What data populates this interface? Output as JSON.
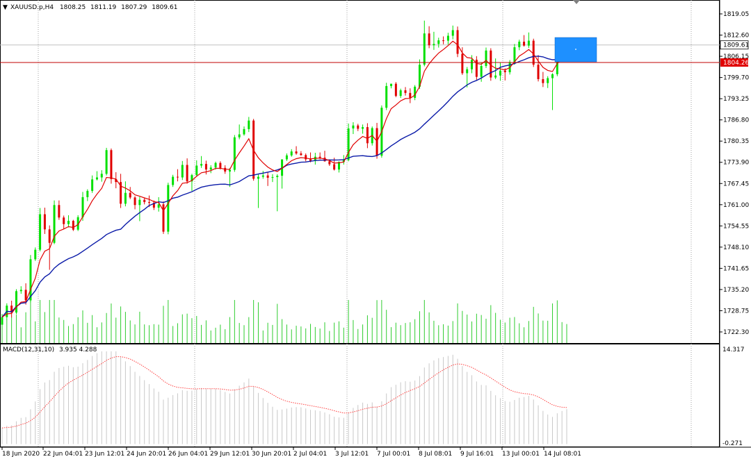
{
  "header": {
    "symbol": "XAUUSD.p,H4",
    "open": "1808.25",
    "high": "1811.19",
    "low": "1807.29",
    "close": "1809.61"
  },
  "colors": {
    "bull": "#00e000",
    "bear": "#e00000",
    "ma_fast": "#e00000",
    "ma_slow": "#0a1aa8",
    "volume": "#2ecc2e",
    "macd_hist": "#c8c8c8",
    "macd_signal": "#ff4040",
    "price_line": "#c00000",
    "bid_badge": "#e00000",
    "box": "#1e90ff"
  },
  "chart_data": [
    {
      "type": "candlestick",
      "title": "XAUUSD.p,H4",
      "ylim": [
        1719.0,
        1823.0
      ],
      "yticks": [
        "1819.05",
        "1812.60",
        "1806.15",
        "1799.70",
        "1793.25",
        "1786.80",
        "1780.35",
        "1773.90",
        "1767.45",
        "1761.00",
        "1754.55",
        "1748.10",
        "1741.65",
        "1735.20",
        "1728.75",
        "1722.30"
      ],
      "xticks": [
        "18 Jun 2020",
        "22 Jun 04:01",
        "23 Jun 12:01",
        "24 Jun 20:01",
        "26 Jun 04:01",
        "29 Jun 12:01",
        "30 Jun 20:01",
        "2 Jul 04:01",
        "3 Jul 12:01",
        "7 Jul 00:01",
        "8 Jul 08:01",
        "9 Jul 16:01",
        "13 Jul 00:01",
        "14 Jul 08:01"
      ],
      "current_price": "1809.61",
      "marker_price": "1804.26",
      "bars": [
        [
          1724.5,
          1727.8,
          1723.0,
          1726.8
        ],
        [
          1726.8,
          1731.0,
          1725.9,
          1730.3
        ],
        [
          1730.3,
          1731.8,
          1726.7,
          1728.2
        ],
        [
          1728.2,
          1735.3,
          1727.7,
          1734.7
        ],
        [
          1734.7,
          1736.2,
          1733.9,
          1735.1
        ],
        [
          1735.1,
          1737.1,
          1730.6,
          1731.9
        ],
        [
          1731.9,
          1745.7,
          1731.3,
          1744.4
        ],
        [
          1744.4,
          1748.0,
          1743.9,
          1747.3
        ],
        [
          1747.3,
          1760.0,
          1746.8,
          1758.1
        ],
        [
          1758.1,
          1760.1,
          1752.1,
          1753.5
        ],
        [
          1753.5,
          1754.7,
          1741.2,
          1749.4
        ],
        [
          1749.4,
          1762.3,
          1749.0,
          1760.9
        ],
        [
          1760.9,
          1762.3,
          1756.4,
          1757.1
        ],
        [
          1757.1,
          1757.7,
          1753.6,
          1755.1
        ],
        [
          1755.1,
          1757.8,
          1754.1,
          1756.1
        ],
        [
          1756.1,
          1756.4,
          1753.0,
          1753.4
        ],
        [
          1753.4,
          1757.8,
          1753.0,
          1757.2
        ],
        [
          1757.2,
          1764.9,
          1756.1,
          1763.3
        ],
        [
          1763.3,
          1765.7,
          1762.1,
          1765.2
        ],
        [
          1765.2,
          1769.9,
          1764.6,
          1768.7
        ],
        [
          1768.7,
          1771.2,
          1768.4,
          1769.3
        ],
        [
          1769.3,
          1771.5,
          1768.0,
          1770.4
        ],
        [
          1770.4,
          1778.3,
          1769.9,
          1777.6
        ],
        [
          1777.6,
          1778.1,
          1767.4,
          1768.8
        ],
        [
          1768.8,
          1770.9,
          1766.0,
          1767.9
        ],
        [
          1767.9,
          1770.4,
          1760.0,
          1761.3
        ],
        [
          1761.3,
          1768.1,
          1760.5,
          1764.6
        ],
        [
          1764.6,
          1766.4,
          1762.7,
          1763.2
        ],
        [
          1763.2,
          1763.6,
          1759.6,
          1760.9
        ],
        [
          1760.9,
          1763.4,
          1756.0,
          1762.5
        ],
        [
          1762.5,
          1763.2,
          1761.1,
          1761.8
        ],
        [
          1761.8,
          1763.8,
          1760.3,
          1761.6
        ],
        [
          1761.6,
          1762.3,
          1759.4,
          1760.1
        ],
        [
          1760.1,
          1763.3,
          1758.9,
          1761.1
        ],
        [
          1761.1,
          1762.0,
          1752.1,
          1752.8
        ],
        [
          1752.8,
          1767.7,
          1752.0,
          1767.0
        ],
        [
          1767.0,
          1770.1,
          1766.4,
          1769.5
        ],
        [
          1769.5,
          1771.8,
          1768.1,
          1769.3
        ],
        [
          1769.3,
          1774.3,
          1768.5,
          1773.1
        ],
        [
          1773.1,
          1775.1,
          1767.4,
          1768.1
        ],
        [
          1768.1,
          1770.4,
          1765.2,
          1770.0
        ],
        [
          1770.0,
          1774.5,
          1769.5,
          1772.9
        ],
        [
          1772.9,
          1775.8,
          1772.2,
          1773.4
        ],
        [
          1773.4,
          1774.4,
          1770.2,
          1771.7
        ],
        [
          1771.7,
          1773.0,
          1770.6,
          1772.3
        ],
        [
          1772.3,
          1774.1,
          1771.7,
          1773.7
        ],
        [
          1773.7,
          1774.2,
          1771.7,
          1772.2
        ],
        [
          1772.2,
          1773.0,
          1770.4,
          1771.1
        ],
        [
          1771.1,
          1772.2,
          1766.4,
          1771.6
        ],
        [
          1771.6,
          1782.2,
          1771.0,
          1781.5
        ],
        [
          1781.5,
          1785.4,
          1780.9,
          1782.4
        ],
        [
          1782.4,
          1784.8,
          1782.0,
          1784.0
        ],
        [
          1784.0,
          1787.7,
          1783.1,
          1786.6
        ],
        [
          1786.6,
          1787.1,
          1768.3,
          1768.9
        ],
        [
          1768.9,
          1770.4,
          1760.0,
          1769.5
        ],
        [
          1769.5,
          1771.3,
          1768.9,
          1769.9
        ],
        [
          1769.9,
          1770.8,
          1766.7,
          1769.2
        ],
        [
          1769.2,
          1770.3,
          1767.9,
          1769.4
        ],
        [
          1769.4,
          1770.3,
          1759.0,
          1769.8
        ],
        [
          1769.8,
          1771.0,
          1765.9,
          1774.8
        ],
        [
          1774.8,
          1776.6,
          1774.3,
          1776.0
        ],
        [
          1776.0,
          1777.9,
          1775.6,
          1777.2
        ],
        [
          1777.2,
          1778.8,
          1776.2,
          1776.6
        ],
        [
          1776.6,
          1777.3,
          1775.9,
          1776.1
        ],
        [
          1776.1,
          1776.6,
          1774.2,
          1774.8
        ],
        [
          1774.8,
          1776.9,
          1773.9,
          1774.3
        ],
        [
          1774.3,
          1776.8,
          1773.2,
          1775.6
        ],
        [
          1775.6,
          1776.9,
          1774.8,
          1775.3
        ],
        [
          1775.3,
          1777.4,
          1774.1,
          1774.2
        ],
        [
          1774.2,
          1774.8,
          1772.8,
          1773.3
        ],
        [
          1773.3,
          1775.3,
          1771.4,
          1771.7
        ],
        [
          1771.7,
          1774.2,
          1770.8,
          1774.0
        ],
        [
          1774.0,
          1776.1,
          1773.2,
          1774.6
        ],
        [
          1774.6,
          1785.7,
          1774.2,
          1784.2
        ],
        [
          1784.2,
          1786.1,
          1782.5,
          1785.1
        ],
        [
          1785.1,
          1785.6,
          1783.4,
          1784.1
        ],
        [
          1784.1,
          1785.4,
          1782.6,
          1784.6
        ],
        [
          1784.6,
          1785.8,
          1778.2,
          1779.7
        ],
        [
          1779.7,
          1784.8,
          1779.0,
          1784.3
        ],
        [
          1784.3,
          1785.9,
          1775.0,
          1775.9
        ],
        [
          1775.9,
          1791.2,
          1775.3,
          1790.5
        ],
        [
          1790.5,
          1798.1,
          1789.8,
          1797.1
        ],
        [
          1797.1,
          1797.8,
          1796.4,
          1797.8
        ],
        [
          1797.8,
          1798.3,
          1793.7,
          1794.1
        ],
        [
          1794.1,
          1796.3,
          1793.5,
          1795.8
        ],
        [
          1795.8,
          1796.8,
          1794.2,
          1795.0
        ],
        [
          1795.0,
          1796.4,
          1791.9,
          1793.5
        ],
        [
          1793.5,
          1797.4,
          1792.8,
          1796.9
        ],
        [
          1796.9,
          1805.2,
          1796.2,
          1803.6
        ],
        [
          1803.6,
          1817.0,
          1803.1,
          1813.1
        ],
        [
          1813.1,
          1815.3,
          1808.6,
          1809.5
        ],
        [
          1809.5,
          1813.6,
          1808.1,
          1809.9
        ],
        [
          1809.9,
          1811.8,
          1808.8,
          1811.0
        ],
        [
          1811.0,
          1812.2,
          1809.8,
          1810.9
        ],
        [
          1810.9,
          1813.3,
          1809.7,
          1812.4
        ],
        [
          1812.4,
          1815.5,
          1811.3,
          1814.1
        ],
        [
          1814.1,
          1815.2,
          1805.9,
          1806.9
        ],
        [
          1806.9,
          1808.9,
          1800.5,
          1801.0
        ],
        [
          1801.0,
          1802.9,
          1796.7,
          1802.2
        ],
        [
          1802.2,
          1806.5,
          1801.0,
          1805.1
        ],
        [
          1805.1,
          1806.2,
          1799.0,
          1799.9
        ],
        [
          1799.9,
          1804.2,
          1798.4,
          1803.2
        ],
        [
          1803.2,
          1808.8,
          1802.6,
          1807.9
        ],
        [
          1807.9,
          1808.6,
          1798.7,
          1799.7
        ],
        [
          1799.7,
          1805.5,
          1799.2,
          1800.3
        ],
        [
          1800.3,
          1804.3,
          1798.7,
          1801.8
        ],
        [
          1801.8,
          1802.5,
          1798.8,
          1801.3
        ],
        [
          1801.3,
          1805.0,
          1800.6,
          1804.4
        ],
        [
          1804.4,
          1809.9,
          1803.6,
          1808.9
        ],
        [
          1808.9,
          1811.2,
          1808.0,
          1810.6
        ],
        [
          1810.6,
          1812.6,
          1809.1,
          1809.4
        ],
        [
          1809.4,
          1813.4,
          1808.7,
          1810.9
        ],
        [
          1810.9,
          1811.5,
          1802.9,
          1803.6
        ],
        [
          1803.6,
          1806.5,
          1798.5,
          1799.2
        ],
        [
          1799.2,
          1801.4,
          1796.8,
          1798.0
        ],
        [
          1798.0,
          1800.1,
          1796.5,
          1799.5
        ],
        [
          1799.5,
          1801.0,
          1789.8,
          1800.7
        ],
        [
          1800.7,
          1811.4,
          1800.1,
          1810.0
        ],
        [
          1810.0,
          1811.2,
          1808.3,
          1809.4
        ],
        [
          1808.25,
          1811.19,
          1807.29,
          1809.61
        ]
      ],
      "ma_fast_last": 1807.0,
      "ma_slow_last": 1801.6
    },
    {
      "type": "bar",
      "title": "MACD(12,31,10)",
      "values_label": "3.935 4.288",
      "ylim_labels": [
        "14.317",
        "-0.271"
      ],
      "ylim": [
        -0.271,
        14.317
      ]
    }
  ]
}
